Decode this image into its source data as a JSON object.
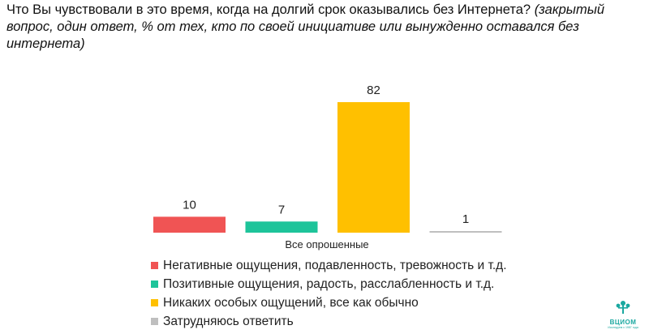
{
  "header": {
    "question": "Что Вы чувствовали в это время, когда на долгий срок оказывались без Интернета?",
    "note": "(закрытый вопрос, один ответ, % от тех, кто по своей инициативе или вынужденно оставался без интернета)"
  },
  "chart_data": {
    "type": "bar",
    "categories": [
      "Все опрошенные"
    ],
    "series": [
      {
        "name": "Негативные ощущения, подавленность, тревожность и т.д.",
        "values": [
          10
        ],
        "color": "#f05454"
      },
      {
        "name": "Позитивные ощущения, радость, расслабленность и т.д.",
        "values": [
          7
        ],
        "color": "#1ec49a"
      },
      {
        "name": "Никаких особых ощущений, все как обычно",
        "values": [
          82
        ],
        "color": "#ffc000"
      },
      {
        "name": "Затрудняюсь ответить",
        "values": [
          1
        ],
        "color": "#bfbfbf"
      }
    ],
    "xlabel": "Все опрошенные",
    "ylabel": "",
    "ylim": [
      0,
      82
    ],
    "legend": "bottom",
    "grid": false,
    "data_labels": true
  },
  "logo": {
    "name": "ВЦИОМ",
    "tagline": "Исследуем с 1987 года",
    "icon": "tree-icon"
  }
}
